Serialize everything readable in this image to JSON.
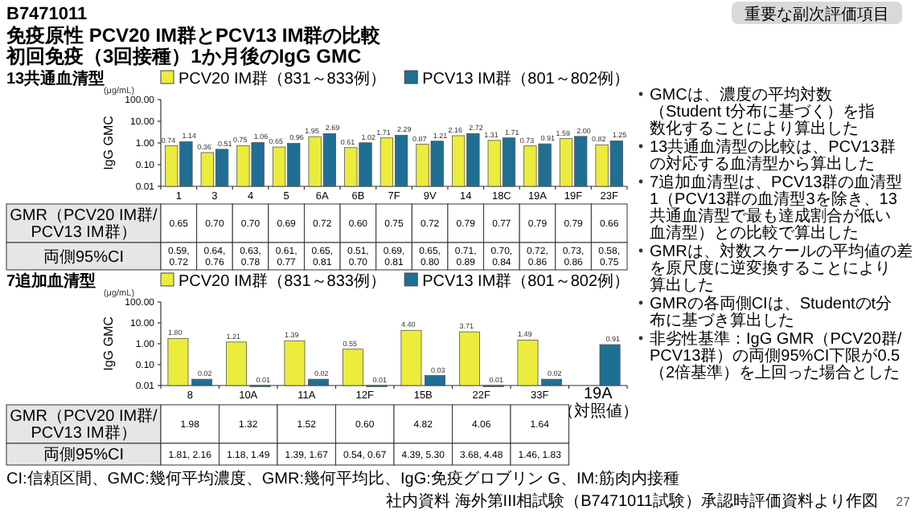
{
  "chart_data": [
    {
      "type": "other",
      "title": "免疫原性 PCV20 IM群とPCV13 IM群の比較",
      "subtitle": "初回免疫（3回接種）1か月後のIgG GMC",
      "annotations": [
        "B7471011",
        "重要な副次評価項目",
        "CI:信頼区間、GMC:幾何平均濃度、GMR:幾何平均比、IgG:免疫グロブリン G、IM:筋肉内接種",
        "社内資料 海外第III相試験（B7471011試験）承認時評価資料より作図",
        "27"
      ]
    },
    {
      "type": "bar",
      "title": "13共通血清型",
      "ylabel": "IgG GMC",
      "annotations": [
        "(μg/mL)"
      ],
      "log": true,
      "ylim": [
        0.01,
        100
      ],
      "yticks": [
        {
          "value": 0.01,
          "label": "0.01"
        },
        {
          "value": 0.1,
          "label": "0.10"
        },
        {
          "value": 1,
          "label": "1.00"
        },
        {
          "value": 10,
          "label": "10.00"
        },
        {
          "value": 100,
          "label": "100.00"
        }
      ],
      "legend": "top",
      "categories": [
        "1",
        "3",
        "4",
        "5",
        "6A",
        "6B",
        "7F",
        "9V",
        "14",
        "18C",
        "19A",
        "19F",
        "23F"
      ],
      "series": [
        {
          "name": "PCV20 IM群（831～833例）",
          "color": "#ecec3c",
          "values": [
            0.74,
            0.36,
            0.75,
            0.65,
            1.95,
            0.61,
            1.71,
            0.87,
            2.16,
            1.31,
            0.73,
            1.59,
            0.82
          ],
          "value_labels": [
            "0.74",
            "0.36",
            "0.75",
            "0.65",
            "1.95",
            "0.61",
            "1.71",
            "0.87",
            "2.16",
            "1.31",
            "0.73",
            "1.59",
            "0.82"
          ]
        },
        {
          "name": "PCV13 IM群（801～802例）",
          "color": "#1f6f94",
          "values": [
            1.14,
            0.51,
            1.06,
            0.96,
            2.69,
            1.02,
            2.29,
            1.21,
            2.72,
            1.71,
            0.91,
            2.0,
            1.25
          ],
          "value_labels": [
            "1.14",
            "0.51",
            "1.06",
            "0.96",
            "2.69",
            "1.02",
            "2.29",
            "1.21",
            "2.72",
            "1.71",
            "0.91",
            "2.00",
            "1.25"
          ]
        }
      ]
    },
    {
      "type": "other",
      "y_categories": [
        "GMR（PCV20 IM群/PCV13 IM群）",
        "両側95%CI"
      ],
      "cell_labels": [
        [
          "0.65",
          "0.70",
          "0.70",
          "0.69",
          "0.72",
          "0.60",
          "0.75",
          "0.72",
          "0.79",
          "0.77",
          "0.79",
          "0.79",
          "0.66"
        ],
        [
          "0.59, 0.72",
          "0.64, 0.76",
          "0.63, 0.78",
          "0.61, 0.77",
          "0.65, 0.81",
          "0.51, 0.70",
          "0.69, 0.81",
          "0.65, 0.80",
          "0.71, 0.89",
          "0.70, 0.84",
          "0.72, 0.86",
          "0.73, 0.86",
          "0.58, 0.75"
        ]
      ]
    },
    {
      "type": "bar",
      "title": "7追加血清型",
      "ylabel": "IgG GMC",
      "annotations": [
        "(μg/mL)"
      ],
      "log": true,
      "ylim": [
        0.01,
        100
      ],
      "yticks": [
        {
          "value": 0.01,
          "label": "0.01"
        },
        {
          "value": 0.1,
          "label": "0.10"
        },
        {
          "value": 1,
          "label": "1.00"
        },
        {
          "value": 10,
          "label": "10.00"
        },
        {
          "value": 100,
          "label": "100.00"
        }
      ],
      "legend": "top",
      "categories": [
        "8",
        "10A",
        "11A",
        "12F",
        "15B",
        "22F",
        "33F",
        "19A（対照値）"
      ],
      "series": [
        {
          "name": "PCV20 IM群（831～833例）",
          "color": "#ecec3c",
          "values": [
            1.8,
            1.21,
            1.39,
            0.55,
            4.4,
            3.71,
            1.49,
            null
          ],
          "value_labels": [
            "1.80",
            "1.21",
            "1.39",
            "0.55",
            "4.40",
            "3.71",
            "1.49",
            null
          ]
        },
        {
          "name": "PCV13 IM群（801～802例）",
          "color": "#1f6f94",
          "values": [
            0.02,
            0.01,
            0.02,
            0.01,
            0.03,
            0.01,
            0.02,
            0.91
          ],
          "value_labels": [
            "0.02",
            "0.01",
            "0.02",
            "0.01",
            "0.03",
            "0.01",
            "0.02",
            "0.91"
          ]
        }
      ]
    },
    {
      "type": "other",
      "y_categories": [
        "GMR（PCV20 IM群/PCV13 IM群）",
        "両側95%CI"
      ],
      "cell_labels": [
        [
          "1.98",
          "1.32",
          "1.52",
          "0.60",
          "4.82",
          "4.06",
          "1.64"
        ],
        [
          "1.81, 2.16",
          "1.18, 1.49",
          "1.39, 1.67",
          "0.54, 0.67",
          "4.39, 5.30",
          "3.68, 4.48",
          "1.46, 1.83"
        ]
      ]
    },
    {
      "type": "other",
      "annotations": [
        "GMCは、濃度の平均対数（Student t分布に基づく）を指数化することにより算出した",
        "13共通血清型の比較は、PCV13群の対応する血清型から算出した",
        "7追加血清型は、PCV13群の血清型1（PCV13群の血清型3を除き、13共通血清型で最も達成割合が低い血清型）との比較で算出した",
        "GMRは、対数スケールの平均値の差を原尺度に逆変換することにより算出した",
        "GMRの各両側CIは、Studentのt分布に基づき算出した",
        "非劣性基準：IgG GMR（PCV20群/PCV13群）の両側95%CI下限が0.5（2倍基準）を上回った場合とした"
      ]
    }
  ]
}
